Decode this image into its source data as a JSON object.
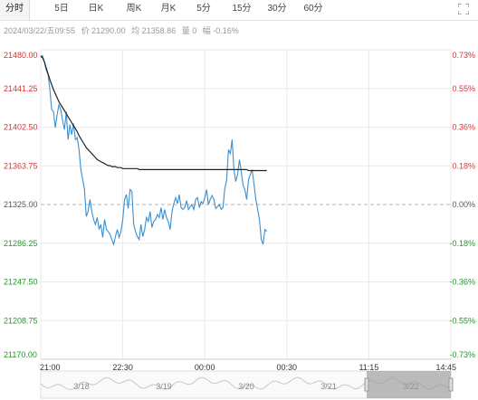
{
  "tabs": [
    {
      "label": "分时",
      "active": true
    },
    {
      "label": "5日",
      "active": false
    },
    {
      "label": "日K",
      "active": false
    },
    {
      "label": "周K",
      "active": false
    },
    {
      "label": "月K",
      "active": false
    },
    {
      "label": "5分",
      "active": false
    },
    {
      "label": "15分",
      "active": false
    },
    {
      "label": "30分",
      "active": false
    },
    {
      "label": "60分",
      "active": false
    }
  ],
  "expand_icon": "fullscreen-icon",
  "info": {
    "datetime": "2024/03/22/五09:55",
    "price": "价 21290.00",
    "avg": "均 21358.86",
    "volume": "量 0",
    "change": "幅 -0.16%"
  },
  "colors": {
    "up": "#e03030",
    "down": "#1f9a1f",
    "price_line": "#3b8fd0",
    "avg_line": "#222222",
    "grid": "#eaeaea"
  },
  "chart_data": {
    "type": "line",
    "prev_close": 21325.0,
    "y_ticks": [
      "21480.00",
      "21441.25",
      "21402.50",
      "21363.75",
      "21325.00",
      "21286.25",
      "21247.50",
      "21208.75",
      "21170.00"
    ],
    "pct_ticks": [
      "0.73%",
      "0.55%",
      "0.36%",
      "0.18%",
      "0.00%",
      "-0.18%",
      "-0.36%",
      "-0.55%",
      "-0.73%"
    ],
    "ylim": [
      21170.0,
      21480.0
    ],
    "x_ticks": [
      "21:00",
      "22:30",
      "00:00",
      "00:30",
      "11:15",
      "14:45"
    ],
    "x_tick_index": [
      0,
      45,
      90,
      135,
      180,
      225
    ],
    "total_points": 225,
    "series": [
      {
        "values": [
          21472,
          21474,
          21468,
          21460,
          21455,
          21440,
          21420,
          21418,
          21402,
          21415,
          21425,
          21420,
          21409,
          21400,
          21418,
          21390,
          21405,
          21395,
          21406,
          21390,
          21392,
          21380,
          21360,
          21350,
          21340,
          21313,
          21318,
          21330,
          21318,
          21310,
          21305,
          21312,
          21300,
          21305,
          21292,
          21310,
          21300,
          21298,
          21295,
          21290,
          21285,
          21293,
          21300,
          21292,
          21298,
          21310,
          21330,
          21335,
          21321,
          21340,
          21338,
          21305,
          21298,
          21293,
          21290,
          21305,
          21293,
          21300,
          21312,
          21308,
          21318,
          21302,
          21308,
          21310,
          21315,
          21312,
          21322,
          21310,
          21320,
          21312,
          21308,
          21300,
          21318,
          21326,
          21332,
          21326,
          21335,
          21322,
          21320,
          21322,
          21329,
          21320,
          21323,
          21325,
          21320,
          21330,
          21332,
          21322,
          21328,
          21326,
          21332,
          21340,
          21325,
          21330,
          21334,
          21330,
          21321,
          21323,
          21325,
          21320,
          21322,
          21341,
          21350,
          21380,
          21376,
          21390,
          21360,
          21348,
          21355,
          21370,
          21358,
          21344,
          21340,
          21330,
          21350,
          21355,
          21360,
          21345,
          21330,
          21320,
          21310,
          21290,
          21285,
          21300,
          21298
        ]
      },
      {
        "values": [
          21474,
          21472,
          21468,
          21462,
          21456,
          21450,
          21445,
          21440,
          21436,
          21432,
          21428,
          21425,
          21422,
          21419,
          21416,
          21413,
          21410,
          21407,
          21404,
          21401,
          21398,
          21394,
          21391,
          21388,
          21385,
          21382,
          21380,
          21378,
          21376,
          21374,
          21372,
          21370,
          21369,
          21368,
          21367,
          21366,
          21365,
          21364,
          21364,
          21363,
          21363,
          21363,
          21362,
          21362,
          21362,
          21361,
          21361,
          21361,
          21361,
          21361,
          21361,
          21361,
          21361,
          21361,
          21360,
          21360,
          21360,
          21360,
          21360,
          21360,
          21360,
          21360,
          21360,
          21360,
          21360,
          21360,
          21360,
          21360,
          21360,
          21360,
          21360,
          21360,
          21360,
          21360,
          21360,
          21360,
          21360,
          21360,
          21360,
          21360,
          21360,
          21360,
          21360,
          21360,
          21360,
          21360,
          21360,
          21360,
          21360,
          21360,
          21360,
          21360,
          21360,
          21360,
          21360,
          21360,
          21360,
          21360,
          21360,
          21360,
          21360,
          21360,
          21360,
          21360,
          21360,
          21360,
          21360,
          21360,
          21360,
          21360,
          21360,
          21360,
          21360,
          21360,
          21359,
          21359,
          21359,
          21359,
          21359,
          21359,
          21359,
          21359,
          21359,
          21359,
          21359
        ]
      }
    ]
  },
  "navigator": {
    "date_labels": [
      "3/18",
      "3/19",
      "3/20",
      "3/21",
      "3/22"
    ]
  }
}
